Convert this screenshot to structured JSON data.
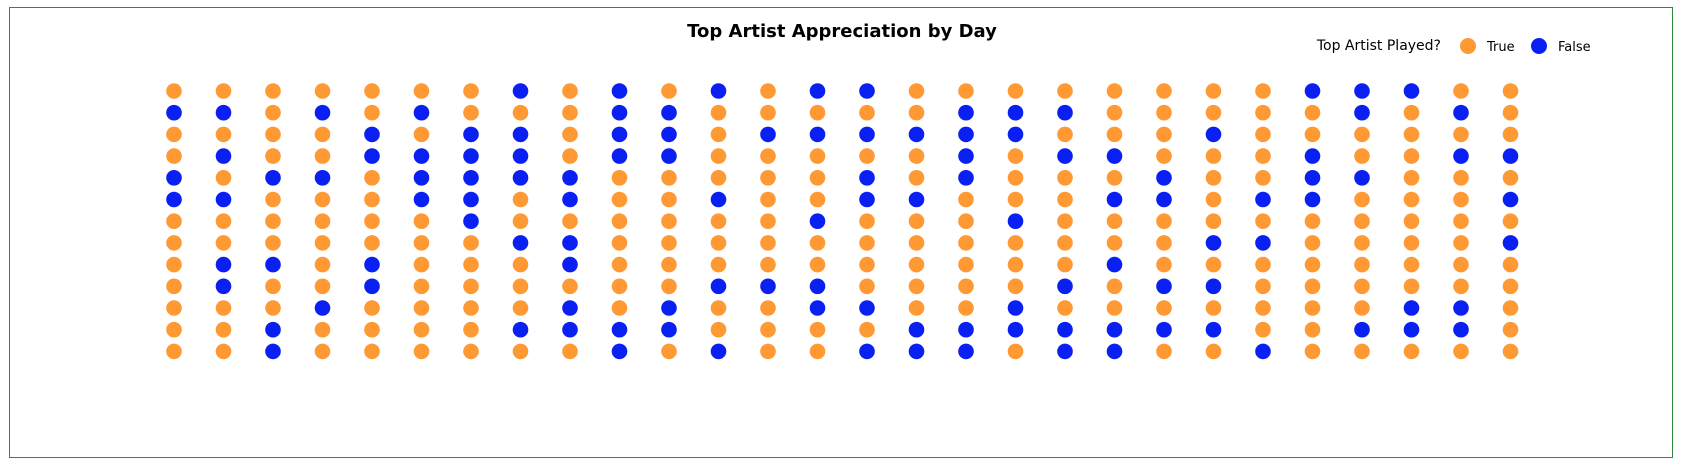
{
  "chart_data": {
    "type": "scatter",
    "title": "Top Artist Appreciation by Day",
    "legend": {
      "title": "Top Artist Played?",
      "placement": "top-right",
      "entries": [
        {
          "label": "True",
          "color": "#ff9933"
        },
        {
          "label": "False",
          "color": "#0a1ff2"
        }
      ]
    },
    "columns": 28,
    "rows": 13,
    "colors": {
      "true": "#ff9933",
      "false": "#0a1ff2",
      "border": "#2e8b3a",
      "text": "#000000"
    },
    "grid": [
      "TTTTTTTFTFTFTFFTTTTTTTTFFFTT",
      "FFTFTFTTTFFTTTTTFFFTTTTTFTFT",
      "TTTTFTFFTFFTFFFFFFTTTFTTTTTT",
      "TFTTFFFFTFFTTTTTFTFFTTTFTTFF",
      "FTFFTFFFFTTTTTFTFTTTFTTFFTTT",
      "FFTTTFFTFTTFTTFFTTTFFTFFTTTF",
      "TTTTTTFTTTTTTFTTTFTTTTTTTTTT",
      "TTTTTTTFFTTTTTTTTTTTTFFTTTTF",
      "TFFTFTTTFTTTTTTTTTTFTTTTTTTT",
      "TFTTFTTTTTTFFFTTTTFTFFTTTTTT",
      "TTTFTTTTFTFTTFFTTFTTTTTTTFFT",
      "TTFTTTTFFFFTTTTFFFFFFFTTFFFT",
      "TTFTTTTTTFTFTTFFFTFFTTFTTTTT"
    ]
  }
}
